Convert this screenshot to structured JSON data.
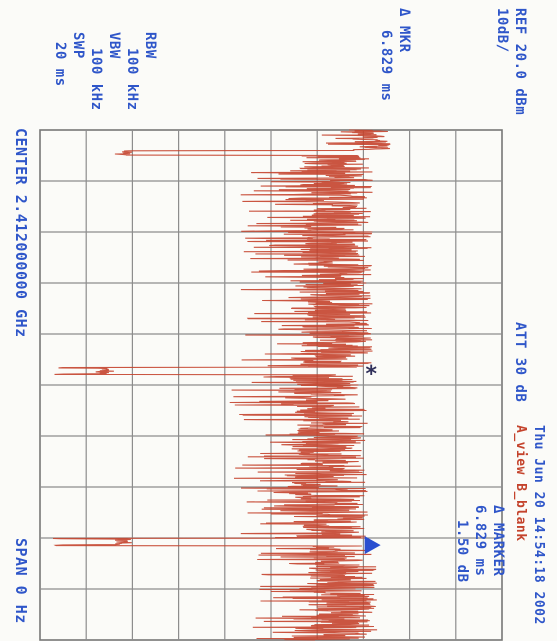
{
  "header": {
    "ref": "REF 20.0 dBm",
    "scale": "10dB/",
    "delta_mkr_label": "Δ MKR",
    "delta_mkr_value": "6.829 ms",
    "rbw_label": "RBW",
    "rbw_value": "100 kHz",
    "vbw_label": "VBW",
    "vbw_value": "100 kHz",
    "swp_label": "SWP",
    "swp_value": "20 ms",
    "att": "ATT 30 dB",
    "datetime": "Thu Jun 20 14:54:18 2002",
    "title_line": "A_view B_blank",
    "marker_panel": {
      "title": "Δ MARKER",
      "time": "6.829 ms",
      "level": "1.50 dB"
    }
  },
  "footer": {
    "center": "CENTER 2.412000000 GHz",
    "span": "SPAN 0 Hz"
  },
  "colors": {
    "trace": "#c4432c",
    "text_blue": "#2f56c9",
    "grid": "#888888",
    "marker_blue": "#2a4fd0"
  },
  "chart_data": {
    "type": "line",
    "xlabel": "",
    "ylabel": "",
    "grid": true,
    "ref_level_dbm": 20.0,
    "db_per_div": 10,
    "vertical_divisions": 10,
    "horizontal_divisions": 10,
    "sweep_ms": 20,
    "x_unit": "ms",
    "y_unit": "dBm",
    "bursts": [
      {
        "start_ms": 0.0,
        "end_ms": 0.8,
        "level_dbm": -4,
        "spread_db": 9
      },
      {
        "start_ms": 1.0,
        "end_ms": 9.3,
        "level_dbm": -8,
        "spread_db": 16
      },
      {
        "start_ms": 9.6,
        "end_ms": 16.0,
        "level_dbm": -9,
        "spread_db": 17
      },
      {
        "start_ms": 16.3,
        "end_ms": 20.0,
        "level_dbm": -7,
        "spread_db": 15
      }
    ],
    "gap_pulses": [
      {
        "at_ms": 0.9,
        "level_dbm": -64
      },
      {
        "at_ms": 9.45,
        "level_dbm": -68
      },
      {
        "at_ms": 16.15,
        "level_dbm": -64
      }
    ],
    "noise_floor_dbm": -76,
    "markers": [
      {
        "name": "reference",
        "symbol": "*",
        "time_ms": 9.45
      },
      {
        "name": "delta",
        "symbol": "▼",
        "time_ms": 16.28,
        "delta_ms": 6.829,
        "delta_db": 1.5
      }
    ]
  }
}
